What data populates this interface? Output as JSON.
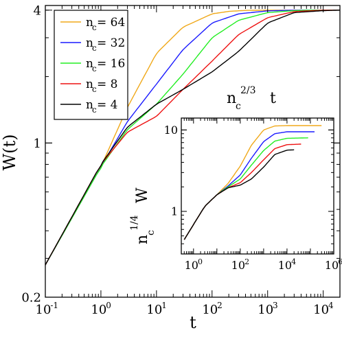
{
  "chart_data": [
    {
      "type": "line",
      "panel": "main",
      "xscale": "log",
      "yscale": "log",
      "xlim": [
        0.1,
        20000
      ],
      "ylim": [
        0.2,
        4.2
      ],
      "xlabel": "t",
      "ylabel": "W(t)",
      "x_ticks": [
        {
          "value": 0.1,
          "base": "10",
          "exp": "-1"
        },
        {
          "value": 1,
          "base": "10",
          "exp": "0"
        },
        {
          "value": 10,
          "base": "10",
          "exp": "1"
        },
        {
          "value": 100,
          "base": "10",
          "exp": "2"
        },
        {
          "value": 1000,
          "base": "10",
          "exp": "3"
        },
        {
          "value": 10000,
          "base": "10",
          "exp": "4"
        }
      ],
      "y_ticks": [
        {
          "value": 0.2,
          "label": "0.2"
        },
        {
          "value": 1,
          "label": "1"
        },
        {
          "value": 4,
          "label": "4"
        }
      ],
      "legend_position": "top-left",
      "series": [
        {
          "name": "64",
          "color": "#f0a818",
          "x": [
            0.1,
            1,
            3,
            10,
            30,
            100,
            200,
            400,
            1000,
            2000,
            20000
          ],
          "y": [
            0.28,
            0.78,
            1.45,
            2.55,
            3.35,
            3.85,
            3.95,
            3.99,
            4.0,
            4.0,
            4.0
          ]
        },
        {
          "name": "32",
          "color": "#1a1aff",
          "x": [
            0.1,
            1,
            3,
            10,
            30,
            100,
            300,
            1000,
            2000,
            4000,
            20000
          ],
          "y": [
            0.28,
            0.78,
            1.25,
            1.85,
            2.65,
            3.5,
            3.85,
            3.97,
            3.99,
            4.0,
            4.0
          ]
        },
        {
          "name": "16",
          "color": "#22ee22",
          "x": [
            0.1,
            1,
            3,
            10,
            30,
            100,
            300,
            1000,
            3000,
            6000,
            20000
          ],
          "y": [
            0.28,
            0.78,
            1.15,
            1.5,
            2.05,
            3.0,
            3.6,
            3.9,
            3.98,
            4.0,
            4.0
          ]
        },
        {
          "name": "8",
          "color": "#ee1111",
          "x": [
            0.1,
            1,
            3,
            10,
            30,
            100,
            300,
            1000,
            3000,
            10000,
            20000
          ],
          "y": [
            0.28,
            0.8,
            1.12,
            1.32,
            1.75,
            2.35,
            3.1,
            3.7,
            3.94,
            4.0,
            4.0
          ]
        },
        {
          "name": "4",
          "color": "#000000",
          "x": [
            0.1,
            1,
            3,
            10,
            30,
            100,
            300,
            1000,
            3000,
            10000,
            20000
          ],
          "y": [
            0.28,
            0.8,
            1.18,
            1.5,
            1.75,
            2.1,
            2.6,
            3.5,
            3.9,
            3.98,
            4.0
          ]
        }
      ]
    },
    {
      "type": "line",
      "panel": "inset",
      "xscale": "log",
      "yscale": "log",
      "xlim": [
        0.3,
        1000000
      ],
      "ylim": [
        0.3,
        14
      ],
      "xlabel_base": "n",
      "xlabel_sub": "c",
      "xlabel_exp": "2/3",
      "xlabel_var": "t",
      "ylabel_base": "n",
      "ylabel_sub": "c",
      "ylabel_exp": "1/4",
      "ylabel_var": "W",
      "x_ticks": [
        {
          "value": 1,
          "base": "10",
          "exp": "0"
        },
        {
          "value": 100,
          "base": "10",
          "exp": "2"
        },
        {
          "value": 10000,
          "base": "10",
          "exp": "4"
        },
        {
          "value": 1000000,
          "base": "10",
          "exp": "6"
        }
      ],
      "y_ticks": [
        {
          "value": 1,
          "label": "1"
        },
        {
          "value": 10,
          "label": "10"
        }
      ],
      "series": [
        {
          "name": "64",
          "color": "#f0a818",
          "x": [
            0.4,
            3,
            10,
            30,
            100,
            300,
            1000,
            3000,
            10000,
            300000
          ],
          "y": [
            0.45,
            1.15,
            1.6,
            2.2,
            3.6,
            6.5,
            10.0,
            11.2,
            11.3,
            11.3
          ]
        },
        {
          "name": "32",
          "color": "#1a1aff",
          "x": [
            0.4,
            3,
            10,
            30,
            100,
            300,
            1000,
            3000,
            10000,
            30000,
            150000
          ],
          "y": [
            0.45,
            1.15,
            1.6,
            2.05,
            2.8,
            4.5,
            7.2,
            9.0,
            9.5,
            9.5,
            9.5
          ]
        },
        {
          "name": "16",
          "color": "#22ee22",
          "x": [
            0.4,
            3,
            10,
            30,
            100,
            300,
            1000,
            3000,
            10000,
            80000
          ],
          "y": [
            0.45,
            1.15,
            1.6,
            2.0,
            2.5,
            3.7,
            5.6,
            7.3,
            7.9,
            8.0
          ]
        },
        {
          "name": "8",
          "color": "#ee1111",
          "x": [
            0.4,
            3,
            10,
            30,
            100,
            300,
            1000,
            3000,
            10000,
            40000
          ],
          "y": [
            0.45,
            1.15,
            1.6,
            1.95,
            2.25,
            3.0,
            4.3,
            5.9,
            6.6,
            6.7
          ]
        },
        {
          "name": "4",
          "color": "#000000",
          "x": [
            0.4,
            3,
            10,
            30,
            100,
            300,
            1000,
            3000,
            10000,
            20000
          ],
          "y": [
            0.45,
            1.15,
            1.6,
            1.95,
            2.1,
            2.5,
            3.5,
            5.0,
            5.65,
            5.7
          ]
        }
      ]
    }
  ],
  "legend": {
    "label_base": "n",
    "label_sub": "c",
    "entries": [
      {
        "value": "= 64",
        "color": "#f0a818"
      },
      {
        "value": "= 32",
        "color": "#1a1aff"
      },
      {
        "value": "= 16",
        "color": "#22ee22"
      },
      {
        "value": "= 8",
        "color": "#ee1111"
      },
      {
        "value": "= 4",
        "color": "#000000"
      }
    ]
  }
}
